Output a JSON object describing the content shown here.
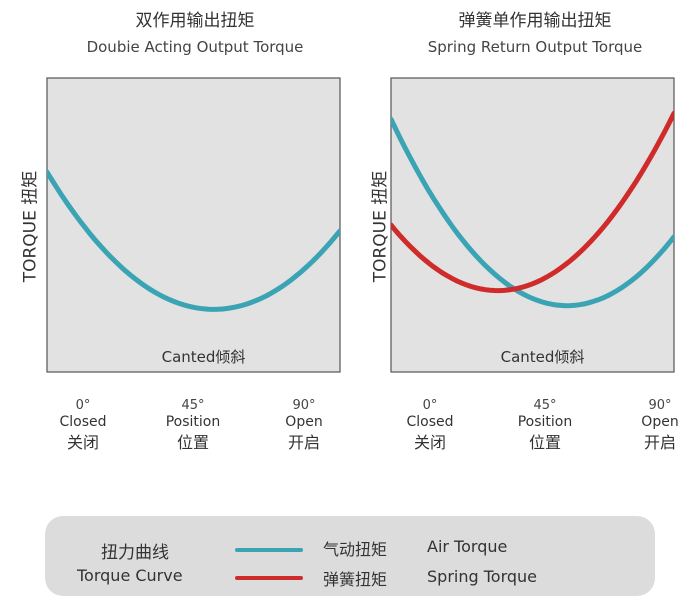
{
  "chart_data": [
    {
      "type": "line",
      "title": "双作用输出扭矩",
      "subtitle": "Doubie Acting Output Torque",
      "ylabel": "TORQUE 扭矩",
      "xlabel": "Canted倾斜",
      "x_ticks": [
        {
          "deg": "0°",
          "en": "Closed",
          "cn": "关闭"
        },
        {
          "deg": "45°",
          "en": "Position",
          "cn": "位置"
        },
        {
          "deg": "90°",
          "en": "Open",
          "cn": "开启"
        }
      ],
      "x": [
        0,
        45,
        90
      ],
      "series": [
        {
          "name": "气动扭矩 Air Torque",
          "color": "#3aa3b4",
          "values": [
            68,
            22,
            48
          ]
        }
      ],
      "xlim": [
        0,
        90
      ],
      "ylim": [
        0,
        100
      ]
    },
    {
      "type": "line",
      "title": "弹簧单作用输出扭矩",
      "subtitle": "Spring Return Output Torque",
      "ylabel": "TORQUE 扭矩",
      "xlabel": "Canted倾斜",
      "x_ticks": [
        {
          "deg": "0°",
          "en": "Closed",
          "cn": "关闭"
        },
        {
          "deg": "45°",
          "en": "Position",
          "cn": "位置"
        },
        {
          "deg": "90°",
          "en": "Open",
          "cn": "开启"
        }
      ],
      "x": [
        0,
        45,
        90
      ],
      "series": [
        {
          "name": "气动扭矩 Air Torque",
          "color": "#3aa3b4",
          "values": [
            86,
            25,
            46
          ]
        },
        {
          "name": "弹簧扭矩 Spring Torque",
          "color": "#d02b2b",
          "values": [
            50,
            30,
            88
          ]
        }
      ],
      "xlim": [
        0,
        90
      ],
      "ylim": [
        0,
        100
      ]
    }
  ],
  "legend": {
    "title_cn": "扭力曲线",
    "title_en": "Torque Curve",
    "air_cn": "气动扭矩",
    "air_en": "Air Torque",
    "spring_cn": "弹簧扭矩",
    "spring_en": "Spring Torque"
  },
  "colors": {
    "air": "#3aa3b4",
    "spring": "#d02b2b",
    "plot_bg": "#e2e2e2"
  }
}
